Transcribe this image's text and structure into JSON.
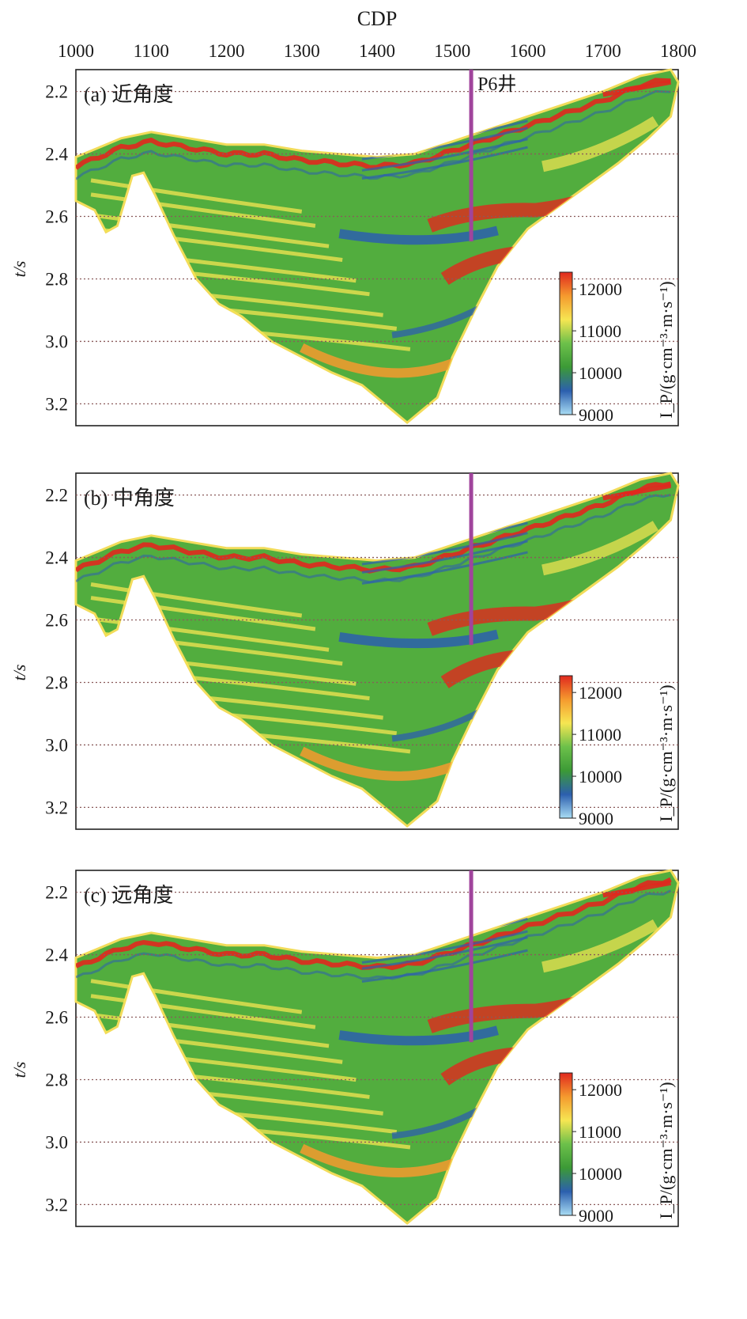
{
  "chart_data": {
    "type": "heatmap",
    "x_axis": {
      "label": "CDP",
      "ticks": [
        1000,
        1100,
        1200,
        1300,
        1400,
        1500,
        1600,
        1700,
        1800
      ],
      "range": [
        1000,
        1800
      ],
      "position": "top"
    },
    "y_axis": {
      "label": "t/s",
      "ticks": [
        2.2,
        2.4,
        2.6,
        2.8,
        3.0,
        3.2
      ],
      "tick_labels": [
        "2.2",
        "2.4",
        "2.6",
        "2.8",
        "3.0",
        "3.2"
      ],
      "range": [
        2.13,
        3.27
      ],
      "inverted": true,
      "gridlines": "dotted"
    },
    "colorbar": {
      "label": "I_P/(g·cm⁻³·m·s⁻¹)",
      "ticks": [
        9000,
        10000,
        11000,
        12000
      ],
      "range": [
        9000,
        12400
      ],
      "colors": [
        "#a8dcf4",
        "#2c5fae",
        "#3c9a36",
        "#6cc04a",
        "#f6e652",
        "#f59a2e",
        "#e0281e"
      ]
    },
    "well": {
      "name": "P6井",
      "cdp": 1525,
      "t_bottom": 2.68,
      "color": "#a0449c"
    },
    "panels": [
      {
        "id": "a",
        "label": "(a) 近角度"
      },
      {
        "id": "b",
        "label": "(b) 中角度"
      },
      {
        "id": "c",
        "label": "(c) 远角度"
      }
    ],
    "section_outline": {
      "top": [
        [
          1000,
          2.41
        ],
        [
          1030,
          2.38
        ],
        [
          1060,
          2.35
        ],
        [
          1100,
          2.33
        ],
        [
          1150,
          2.35
        ],
        [
          1200,
          2.37
        ],
        [
          1250,
          2.37
        ],
        [
          1300,
          2.39
        ],
        [
          1350,
          2.4
        ],
        [
          1400,
          2.41
        ],
        [
          1450,
          2.4
        ],
        [
          1500,
          2.36
        ],
        [
          1550,
          2.32
        ],
        [
          1600,
          2.28
        ],
        [
          1650,
          2.24
        ],
        [
          1700,
          2.2
        ],
        [
          1750,
          2.15
        ],
        [
          1790,
          2.13
        ]
      ],
      "bottom": [
        [
          1800,
          2.17
        ],
        [
          1790,
          2.28
        ],
        [
          1760,
          2.35
        ],
        [
          1720,
          2.43
        ],
        [
          1680,
          2.5
        ],
        [
          1640,
          2.57
        ],
        [
          1600,
          2.64
        ],
        [
          1560,
          2.76
        ],
        [
          1530,
          2.9
        ],
        [
          1500,
          3.05
        ],
        [
          1480,
          3.18
        ],
        [
          1460,
          3.22
        ],
        [
          1440,
          3.26
        ],
        [
          1420,
          3.22
        ],
        [
          1380,
          3.14
        ],
        [
          1340,
          3.1
        ],
        [
          1300,
          3.05
        ],
        [
          1260,
          3.0
        ],
        [
          1220,
          2.92
        ],
        [
          1190,
          2.88
        ],
        [
          1160,
          2.8
        ],
        [
          1130,
          2.66
        ],
        [
          1105,
          2.53
        ],
        [
          1090,
          2.46
        ],
        [
          1075,
          2.47
        ],
        [
          1065,
          2.55
        ],
        [
          1055,
          2.63
        ],
        [
          1040,
          2.65
        ],
        [
          1025,
          2.58
        ],
        [
          1000,
          2.55
        ]
      ]
    }
  }
}
